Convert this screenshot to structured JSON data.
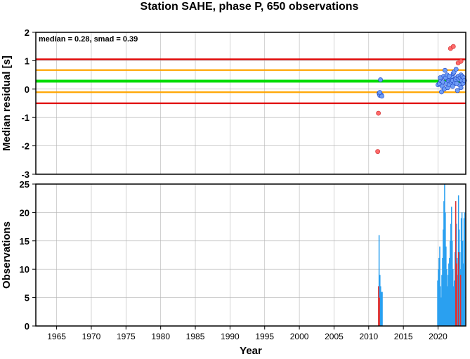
{
  "figure": {
    "title": "Station SAHE, phase P, 650 observations",
    "colors": {
      "background": "#ffffff",
      "frame": "#000000",
      "grid": "#b4b4b4",
      "median_line": "#00dd00",
      "smad_lines": "#ffa500",
      "outer_lines": "#e00000",
      "blue_points": "#6f9ef7",
      "red_points": "#ff6a6a",
      "blue_bars": "#2aa0f0",
      "red_bars": "#e03030"
    }
  },
  "chart_data": [
    {
      "type": "scatter",
      "panel": "residuals",
      "ylabel": "Median residual [s]",
      "annotation": "median = 0.28, smad = 0.39",
      "xlim": [
        1962,
        2024
      ],
      "ylim": [
        -3,
        2
      ],
      "y_ticks": [
        2,
        1,
        0,
        -1,
        -2,
        -3
      ],
      "grid": true,
      "reference_lines": [
        {
          "y": 1.05,
          "color": "#e00000"
        },
        {
          "y": 0.67,
          "color": "#ffa500"
        },
        {
          "y": 0.28,
          "color": "#00dd00"
        },
        {
          "y": -0.11,
          "color": "#ffa500"
        },
        {
          "y": -0.5,
          "color": "#e00000"
        }
      ],
      "series": [
        {
          "color": "#6f9ef7",
          "points": [
            [
              2011.7,
              0.33
            ],
            [
              2011.5,
              -0.15
            ],
            [
              2011.6,
              -0.22
            ],
            [
              2011.8,
              -0.2
            ],
            [
              2011.9,
              -0.25
            ],
            [
              2011.6,
              -0.12
            ],
            [
              2020.0,
              0.15
            ],
            [
              2020.2,
              0.2
            ],
            [
              2020.4,
              0.3
            ],
            [
              2020.5,
              -0.1
            ],
            [
              2020.6,
              0.1
            ],
            [
              2020.7,
              0.25
            ],
            [
              2020.8,
              0.45
            ],
            [
              2020.9,
              0.0
            ],
            [
              2021.0,
              0.66
            ],
            [
              2021.1,
              0.4
            ],
            [
              2021.2,
              0.2
            ],
            [
              2021.3,
              0.5
            ],
            [
              2021.4,
              0.05
            ],
            [
              2021.5,
              0.3
            ],
            [
              2021.6,
              0.15
            ],
            [
              2021.7,
              0.35
            ],
            [
              2021.8,
              0.4
            ],
            [
              2021.9,
              0.25
            ],
            [
              2022.0,
              0.45
            ],
            [
              2022.1,
              0.3
            ],
            [
              2022.2,
              0.55
            ],
            [
              2022.3,
              0.6
            ],
            [
              2022.4,
              0.2
            ],
            [
              2022.5,
              0.35
            ],
            [
              2022.6,
              0.7
            ],
            [
              2022.7,
              0.4
            ],
            [
              2022.8,
              -0.05
            ],
            [
              2022.9,
              0.45
            ],
            [
              2023.0,
              0.35
            ],
            [
              2023.1,
              0.15
            ],
            [
              2023.2,
              0.4
            ],
            [
              2023.3,
              0.5
            ],
            [
              2023.4,
              0.3
            ],
            [
              2023.5,
              0.45
            ],
            [
              2023.6,
              0.2
            ],
            [
              2023.7,
              0.4
            ],
            [
              2023.8,
              0.3
            ],
            [
              2021.6,
              0.45
            ],
            [
              2022.1,
              0.1
            ],
            [
              2022.7,
              0.2
            ],
            [
              2023.3,
              0.05
            ],
            [
              2020.3,
              0.4
            ]
          ]
        },
        {
          "color": "#ff6a6a",
          "points": [
            [
              2011.4,
              -0.85
            ],
            [
              2011.3,
              -2.2
            ],
            [
              2021.8,
              1.43
            ],
            [
              2022.2,
              1.5
            ],
            [
              2022.9,
              0.92
            ],
            [
              2023.3,
              0.98
            ]
          ]
        }
      ]
    },
    {
      "type": "bar",
      "panel": "observations",
      "xlabel": "Year",
      "ylabel": "Observations",
      "xlim": [
        1962,
        2024
      ],
      "ylim": [
        0,
        25
      ],
      "x_ticks": [
        1965,
        1970,
        1975,
        1980,
        1985,
        1990,
        1995,
        2000,
        2005,
        2010,
        2015,
        2020
      ],
      "y_ticks": [
        25,
        20,
        15,
        10,
        5,
        0
      ],
      "grid": true,
      "series": [
        {
          "color": "#2aa0f0",
          "bars": [
            [
              2011.5,
              16
            ],
            [
              2011.62,
              9
            ],
            [
              2011.72,
              7
            ],
            [
              2011.85,
              6
            ],
            [
              2011.95,
              6
            ],
            [
              2019.95,
              8
            ],
            [
              2020.05,
              10
            ],
            [
              2020.15,
              12
            ],
            [
              2020.25,
              14
            ],
            [
              2020.35,
              7
            ],
            [
              2020.45,
              5
            ],
            [
              2020.55,
              9
            ],
            [
              2020.65,
              12
            ],
            [
              2020.75,
              17
            ],
            [
              2020.85,
              22
            ],
            [
              2020.95,
              25
            ],
            [
              2021.05,
              20
            ],
            [
              2021.15,
              14
            ],
            [
              2021.25,
              10
            ],
            [
              2021.35,
              7
            ],
            [
              2021.45,
              9
            ],
            [
              2021.55,
              11
            ],
            [
              2021.65,
              12
            ],
            [
              2021.75,
              15
            ],
            [
              2021.85,
              18
            ],
            [
              2021.95,
              21
            ],
            [
              2022.05,
              15
            ],
            [
              2022.15,
              10
            ],
            [
              2022.25,
              7
            ],
            [
              2022.35,
              8
            ],
            [
              2022.45,
              13
            ],
            [
              2022.55,
              22
            ],
            [
              2022.65,
              18
            ],
            [
              2022.75,
              12
            ],
            [
              2022.85,
              9
            ],
            [
              2022.95,
              23
            ],
            [
              2023.05,
              17
            ],
            [
              2023.15,
              13
            ],
            [
              2023.25,
              10
            ],
            [
              2023.35,
              19
            ],
            [
              2023.45,
              20
            ],
            [
              2023.55,
              15
            ],
            [
              2023.65,
              11
            ],
            [
              2023.75,
              19
            ],
            [
              2023.85,
              20
            ]
          ]
        },
        {
          "color": "#e03030",
          "bars": [
            [
              2011.42,
              7
            ],
            [
              2011.55,
              5
            ],
            [
              2022.55,
              22
            ],
            [
              2022.7,
              11
            ],
            [
              2022.95,
              13
            ],
            [
              2023.25,
              9
            ]
          ]
        }
      ]
    }
  ]
}
